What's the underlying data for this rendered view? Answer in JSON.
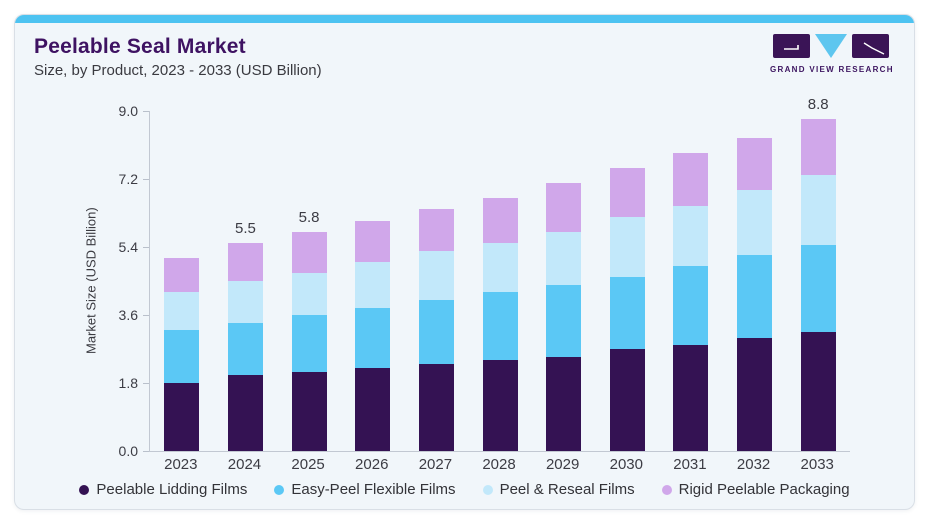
{
  "header": {
    "title": "Peelable Seal Market",
    "subtitle": "Size, by Product, 2023 - 2033 (USD Billion)",
    "logo_text": "GRAND VIEW RESEARCH"
  },
  "theme": {
    "accent_strip": "#4dc3f1",
    "title_color": "#3e1262",
    "card_background": "#f1f6fa",
    "logo_purple": "#3a1456",
    "logo_blue": "#5ec6ef"
  },
  "chart_data": {
    "type": "bar",
    "stacked": true,
    "title": "Peelable Seal Market",
    "subtitle": "Size, by Product, 2023 - 2033 (USD Billion)",
    "xlabel": "",
    "ylabel": "Market Size (USD Billion)",
    "ylim": [
      0,
      9.0
    ],
    "ytick_labels": [
      "0.0",
      "1.8",
      "3.6",
      "5.4",
      "7.2",
      "9.0"
    ],
    "grid": false,
    "legend_position": "bottom",
    "categories": [
      "2023",
      "2024",
      "2025",
      "2026",
      "2027",
      "2028",
      "2029",
      "2030",
      "2031",
      "2032",
      "2033"
    ],
    "series": [
      {
        "name": "Peelable Lidding Films",
        "color": "#341253",
        "values": [
          1.8,
          2.0,
          2.1,
          2.2,
          2.3,
          2.4,
          2.5,
          2.7,
          2.8,
          3.0,
          3.15
        ]
      },
      {
        "name": "Easy-Peel Flexible Films",
        "color": "#5bc8f5",
        "values": [
          1.4,
          1.4,
          1.5,
          1.6,
          1.7,
          1.8,
          1.9,
          1.9,
          2.1,
          2.2,
          2.3
        ]
      },
      {
        "name": "Peel & Reseal Films",
        "color": "#c2e8fa",
        "values": [
          1.0,
          1.1,
          1.1,
          1.2,
          1.3,
          1.3,
          1.4,
          1.6,
          1.6,
          1.7,
          1.85
        ]
      },
      {
        "name": "Rigid Peelable Packaging",
        "color": "#d0a7ea",
        "values": [
          0.9,
          1.0,
          1.1,
          1.1,
          1.1,
          1.2,
          1.3,
          1.3,
          1.4,
          1.4,
          1.5
        ]
      }
    ],
    "bar_labels": [
      "",
      "5.5",
      "5.8",
      "",
      "",
      "",
      "",
      "",
      "",
      "",
      "8.8"
    ],
    "totals": [
      5.1,
      5.5,
      5.8,
      6.1,
      6.4,
      6.7,
      7.1,
      7.5,
      7.9,
      8.3,
      8.8
    ]
  }
}
